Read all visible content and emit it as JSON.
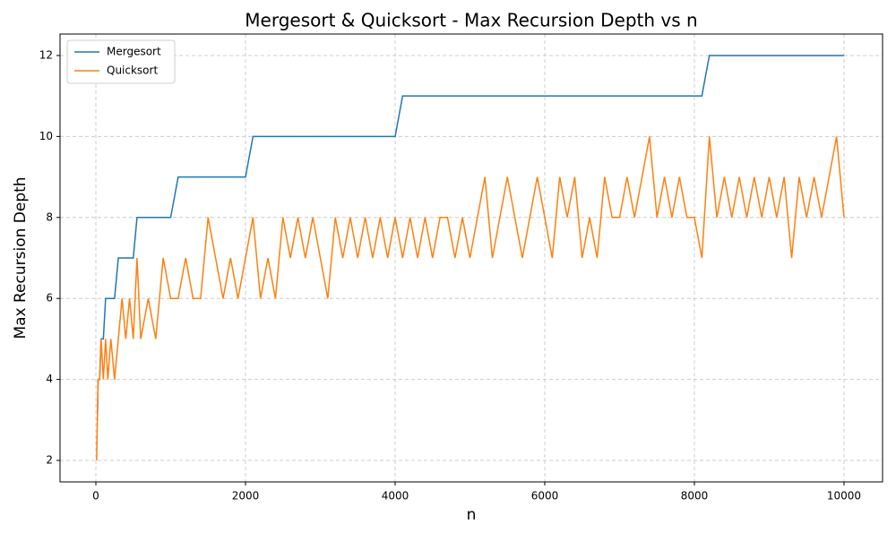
{
  "chart_data": {
    "type": "line",
    "title": "Mergesort & Quicksort - Max Recursion Depth vs n",
    "x_label": "n",
    "y_label": "Max Recursion Depth",
    "x": [
      10,
      20,
      30,
      50,
      70,
      100,
      130,
      160,
      200,
      250,
      300,
      350,
      400,
      450,
      500,
      550,
      600,
      700,
      800,
      900,
      1000,
      1100,
      1200,
      1300,
      1400,
      1500,
      1600,
      1700,
      1800,
      1900,
      2000,
      2100,
      2200,
      2300,
      2400,
      2500,
      2600,
      2700,
      2800,
      2900,
      3000,
      3100,
      3200,
      3300,
      3400,
      3500,
      3600,
      3700,
      3800,
      3900,
      4000,
      4100,
      4200,
      4300,
      4400,
      4500,
      4600,
      4700,
      4800,
      4900,
      5000,
      5100,
      5200,
      5300,
      5400,
      5500,
      5600,
      5700,
      5800,
      5900,
      6000,
      6100,
      6200,
      6300,
      6400,
      6500,
      6600,
      6700,
      6800,
      6900,
      7000,
      7100,
      7200,
      7300,
      7400,
      7500,
      7600,
      7700,
      7800,
      7900,
      8000,
      8100,
      8200,
      8300,
      8400,
      8500,
      8600,
      8700,
      8800,
      8900,
      9000,
      9100,
      9200,
      9300,
      9400,
      9500,
      9600,
      9700,
      9800,
      9900,
      10000
    ],
    "series": [
      {
        "name": "Mergesort",
        "color": "#1f77b4",
        "values": [
          3,
          3,
          4,
          4,
          5,
          5,
          6,
          6,
          6,
          6,
          7,
          7,
          7,
          7,
          7,
          8,
          8,
          8,
          8,
          8,
          8,
          9,
          9,
          9,
          9,
          9,
          9,
          9,
          9,
          9,
          9,
          10,
          10,
          10,
          10,
          10,
          10,
          10,
          10,
          10,
          10,
          10,
          10,
          10,
          10,
          10,
          10,
          10,
          10,
          10,
          10,
          11,
          11,
          11,
          11,
          11,
          11,
          11,
          11,
          11,
          11,
          11,
          11,
          11,
          11,
          11,
          11,
          11,
          11,
          11,
          11,
          11,
          11,
          11,
          11,
          11,
          11,
          11,
          11,
          11,
          11,
          11,
          11,
          11,
          11,
          11,
          11,
          11,
          11,
          11,
          11,
          11,
          12,
          12,
          12,
          12,
          12,
          12,
          12,
          12,
          12,
          12,
          12,
          12,
          12,
          12,
          12,
          12,
          12,
          12,
          12
        ]
      },
      {
        "name": "Quicksort",
        "color": "#ff7f0e",
        "values": [
          2,
          3,
          4,
          4,
          5,
          4,
          5,
          4,
          5,
          4,
          5,
          6,
          5,
          6,
          5,
          7,
          5,
          6,
          5,
          7,
          6,
          6,
          7,
          6,
          6,
          8,
          7,
          6,
          7,
          6,
          7,
          8,
          6,
          7,
          6,
          8,
          7,
          8,
          7,
          8,
          7,
          6,
          8,
          7,
          8,
          7,
          8,
          7,
          8,
          7,
          8,
          7,
          8,
          7,
          8,
          7,
          8,
          8,
          7,
          8,
          7,
          8,
          9,
          7,
          8,
          9,
          8,
          7,
          8,
          9,
          8,
          7,
          9,
          8,
          9,
          7,
          8,
          7,
          9,
          8,
          8,
          9,
          8,
          9,
          10,
          8,
          9,
          8,
          9,
          8,
          8,
          7,
          10,
          8,
          9,
          8,
          9,
          8,
          9,
          8,
          9,
          8,
          9,
          7,
          9,
          8,
          9,
          8,
          9,
          10,
          8
        ]
      }
    ],
    "xlim": [
      -479,
      10515
    ],
    "ylim": [
      1.47,
      12.53
    ],
    "xticks": [
      0,
      2000,
      4000,
      6000,
      8000,
      10000
    ],
    "yticks": [
      2,
      4,
      6,
      8,
      10,
      12
    ],
    "grid": true,
    "legend": "upper left"
  }
}
